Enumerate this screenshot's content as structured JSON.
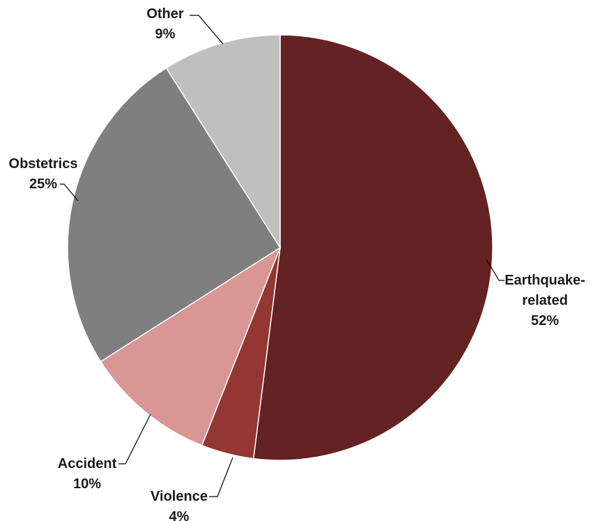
{
  "chart_data": {
    "type": "pie",
    "categories": [
      "Earthquake-related",
      "Violence",
      "Accident",
      "Obstetrics",
      "Other"
    ],
    "values": [
      52,
      4,
      10,
      25,
      9
    ],
    "value_labels": [
      "52%",
      "4%",
      "10%",
      "25%",
      "9%"
    ],
    "colors": [
      "#642222",
      "#943634",
      "#d99694",
      "#7f7f7f",
      "#bfbfbf"
    ]
  }
}
